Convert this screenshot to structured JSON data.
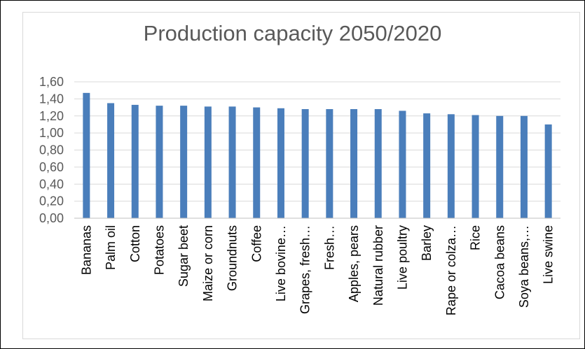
{
  "chart_data": {
    "type": "bar",
    "title": "Production capacity 2050/2020",
    "xlabel": "",
    "ylabel": "",
    "ylim": [
      0,
      1.6
    ],
    "ytick_step": 0.2,
    "ytick_labels": [
      "0,00",
      "0,20",
      "0,40",
      "0,60",
      "0,80",
      "1,00",
      "1,20",
      "1,40",
      "1,60"
    ],
    "grid": true,
    "bar_color": "#4a7ebb",
    "categories": [
      "Bananas",
      "Palm oil",
      "Cotton",
      "Potatoes",
      "Sugar beet",
      "Maize or corn",
      "Groundnuts",
      "Coffee",
      "Live bovine…",
      "Grapes, fresh…",
      "Fresh…",
      "Apples, pears",
      "Natural rubber",
      "Live poultry",
      "Barley",
      "Rape or colza…",
      "Rice",
      "Cacoa beans",
      "Soya beans,…",
      "Live swine"
    ],
    "values": [
      1.47,
      1.35,
      1.33,
      1.32,
      1.32,
      1.31,
      1.31,
      1.3,
      1.29,
      1.28,
      1.28,
      1.28,
      1.28,
      1.26,
      1.23,
      1.22,
      1.21,
      1.2,
      1.2,
      1.1
    ]
  }
}
